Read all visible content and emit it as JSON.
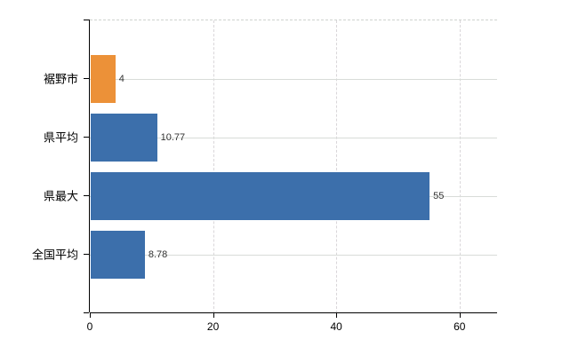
{
  "chart_data": {
    "type": "bar",
    "orientation": "horizontal",
    "title": "",
    "xlabel": "",
    "ylabel": "",
    "legend": "none",
    "categories": [
      "裾野市",
      "県平均",
      "県最大",
      "全国平均"
    ],
    "values": [
      4,
      10.77,
      55,
      8.78
    ],
    "value_labels": [
      "4",
      "10.77",
      "55",
      "8.78"
    ],
    "bar_colors": [
      "#EC9138",
      "#3C6FAB",
      "#3C6FAB",
      "#3C6FAB"
    ],
    "x_tick_values": [
      0,
      20,
      40,
      60
    ],
    "x_tick_labels": [
      "0",
      "20",
      "40",
      "60"
    ],
    "xlim": [
      0,
      66.1
    ],
    "grid": {
      "vertical": "dashed",
      "horizontal": "solid-at-category-centers",
      "top_border": "dashed"
    },
    "accent_colors": {
      "highlight_orange": "#EC9138",
      "series_blue": "#3C6FAB",
      "grid_gray": "#d8dcd8",
      "axis_black": "#000000"
    }
  }
}
